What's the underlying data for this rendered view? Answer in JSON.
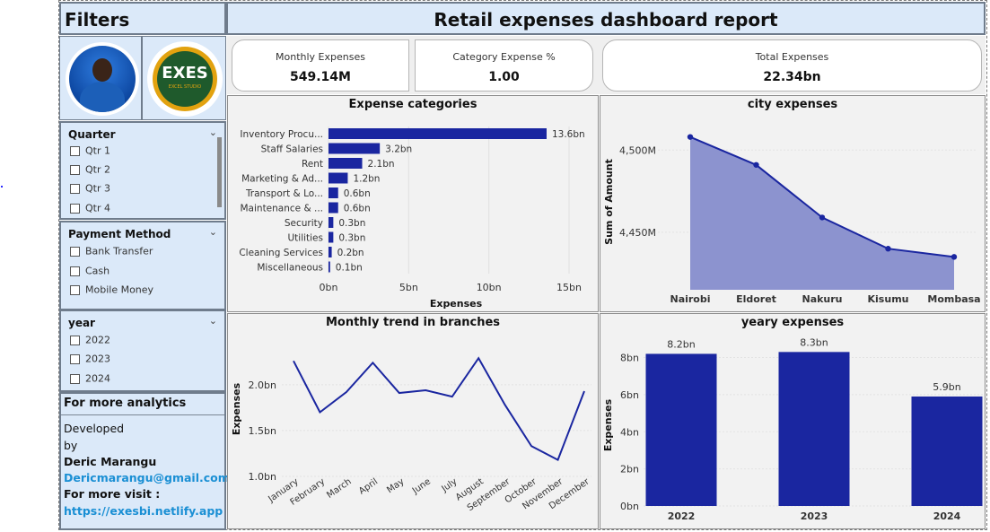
{
  "filters": {
    "title": "Filters",
    "quarter": {
      "label": "Quarter",
      "options": [
        "Qtr 1",
        "Qtr 2",
        "Qtr 3",
        "Qtr 4"
      ]
    },
    "payment_method": {
      "label": "Payment Method",
      "options": [
        "Bank Transfer",
        "Cash",
        "Mobile Money"
      ]
    },
    "year": {
      "label": "year",
      "options": [
        "2022",
        "2023",
        "2024"
      ]
    }
  },
  "logo": {
    "word": "EXES",
    "sub": "EXCEL STUDIO",
    "tagline": "WE ANALYZE YOU DECIDE"
  },
  "analytics": {
    "title": "For more analytics",
    "developed": "Developed",
    "by": "by",
    "name": "Deric Marangu",
    "email": "Dericmarangu@gmail.com",
    "visit": "For more visit :",
    "url": "https://exesbi.netlify.app"
  },
  "header": {
    "title": "Retail expenses dashboard report"
  },
  "kpis": [
    {
      "label": "Monthly Expenses",
      "value": "549.14M"
    },
    {
      "label": "Category Expense %",
      "value": "1.00"
    },
    {
      "label": "Total Expenses",
      "value": "22.34bn"
    }
  ],
  "chart_data": [
    {
      "type": "bar",
      "orientation": "horizontal",
      "title": "Expense categories",
      "xlabel": "Expenses",
      "categories": [
        "Inventory Procu...",
        "Staff Salaries",
        "Rent",
        "Marketing & Ad...",
        "Transport & Lo...",
        "Maintenance & ...",
        "Security",
        "Utilities",
        "Cleaning Services",
        "Miscellaneous"
      ],
      "values": [
        13.6,
        3.2,
        2.1,
        1.2,
        0.6,
        0.6,
        0.3,
        0.3,
        0.2,
        0.1
      ],
      "data_labels": [
        "13.6bn",
        "3.2bn",
        "2.1bn",
        "1.2bn",
        "0.6bn",
        "0.6bn",
        "0.3bn",
        "0.3bn",
        "0.2bn",
        "0.1bn"
      ],
      "xticks": [
        0,
        5,
        10,
        15
      ],
      "xtick_labels": [
        "0bn",
        "5bn",
        "10bn",
        "15bn"
      ],
      "xlim": [
        0,
        15
      ],
      "color": "#1a26a0"
    },
    {
      "type": "area",
      "title": "city expenses",
      "ylabel": "Sum of Amount",
      "categories": [
        "Nairobi",
        "Eldoret",
        "Nakuru",
        "Kisumu",
        "Mombasa"
      ],
      "values": [
        4508,
        4491,
        4459,
        4440,
        4435
      ],
      "yticks": [
        4450,
        4500
      ],
      "ytick_labels": [
        "4,450M",
        "4,500M"
      ],
      "ylim": [
        4415,
        4522
      ],
      "color": "#1a26a0",
      "fill": "#8c93cf"
    },
    {
      "type": "line",
      "title": "Monthly trend in branches",
      "ylabel": "Expenses",
      "categories": [
        "January",
        "February",
        "March",
        "April",
        "May",
        "June",
        "July",
        "August",
        "September",
        "October",
        "November",
        "December"
      ],
      "values": [
        2.26,
        1.7,
        1.92,
        2.24,
        1.91,
        1.94,
        1.87,
        2.29,
        1.78,
        1.33,
        1.18,
        1.93
      ],
      "yticks": [
        1.0,
        1.5,
        2.0
      ],
      "ytick_labels": [
        "1.0bn",
        "1.5bn",
        "2.0bn"
      ],
      "ylim": [
        1.0,
        2.4
      ],
      "color": "#1a26a0"
    },
    {
      "type": "bar",
      "title": "yeary expenses",
      "ylabel": "Expenses",
      "categories": [
        "2022",
        "2023",
        "2024"
      ],
      "values": [
        8.2,
        8.3,
        5.9
      ],
      "data_labels": [
        "8.2bn",
        "8.3bn",
        "5.9bn"
      ],
      "yticks": [
        0,
        2,
        4,
        6,
        8
      ],
      "ytick_labels": [
        "0bn",
        "2bn",
        "4bn",
        "6bn",
        "8bn"
      ],
      "ylim": [
        0,
        8.8
      ],
      "color": "#1a26a0"
    }
  ]
}
